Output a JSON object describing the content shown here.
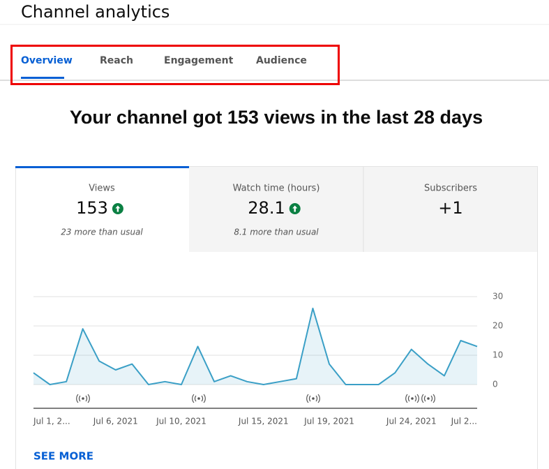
{
  "header": {
    "title": "Channel analytics"
  },
  "tabs": [
    "Overview",
    "Reach",
    "Engagement",
    "Audience"
  ],
  "headline": "Your channel got 153 views in the last 28 days",
  "metrics": [
    {
      "label": "Views",
      "value": 153,
      "note": "23 more than usual"
    },
    {
      "label": "Watch time (hours)",
      "value": 28.1,
      "note": "8.1 more than usual"
    },
    {
      "label": "Subscribers",
      "value": "+1"
    }
  ],
  "chart_data": {
    "type": "line",
    "categories": [
      "Jul 1, 2...",
      null,
      null,
      null,
      null,
      "Jul 6, 2021",
      null,
      null,
      null,
      "Jul 10, 2021",
      null,
      null,
      null,
      null,
      "Jul 15, 2021",
      null,
      null,
      null,
      "Jul 19, 2021",
      null,
      null,
      null,
      null,
      "Jul 24, 2021",
      null,
      null,
      null,
      "Jul 2..."
    ],
    "values": [
      4,
      0,
      1,
      19,
      8,
      5,
      7,
      0,
      1,
      0,
      13,
      1,
      3,
      1,
      0,
      1,
      2,
      26,
      7,
      0,
      0,
      0,
      4,
      12,
      7,
      3,
      15,
      13
    ],
    "color": "#3a9fc6",
    "ylim": [
      0,
      30
    ],
    "yticks": [
      0,
      10,
      20,
      30
    ],
    "grid": true
  },
  "see_more": "SEE MORE"
}
